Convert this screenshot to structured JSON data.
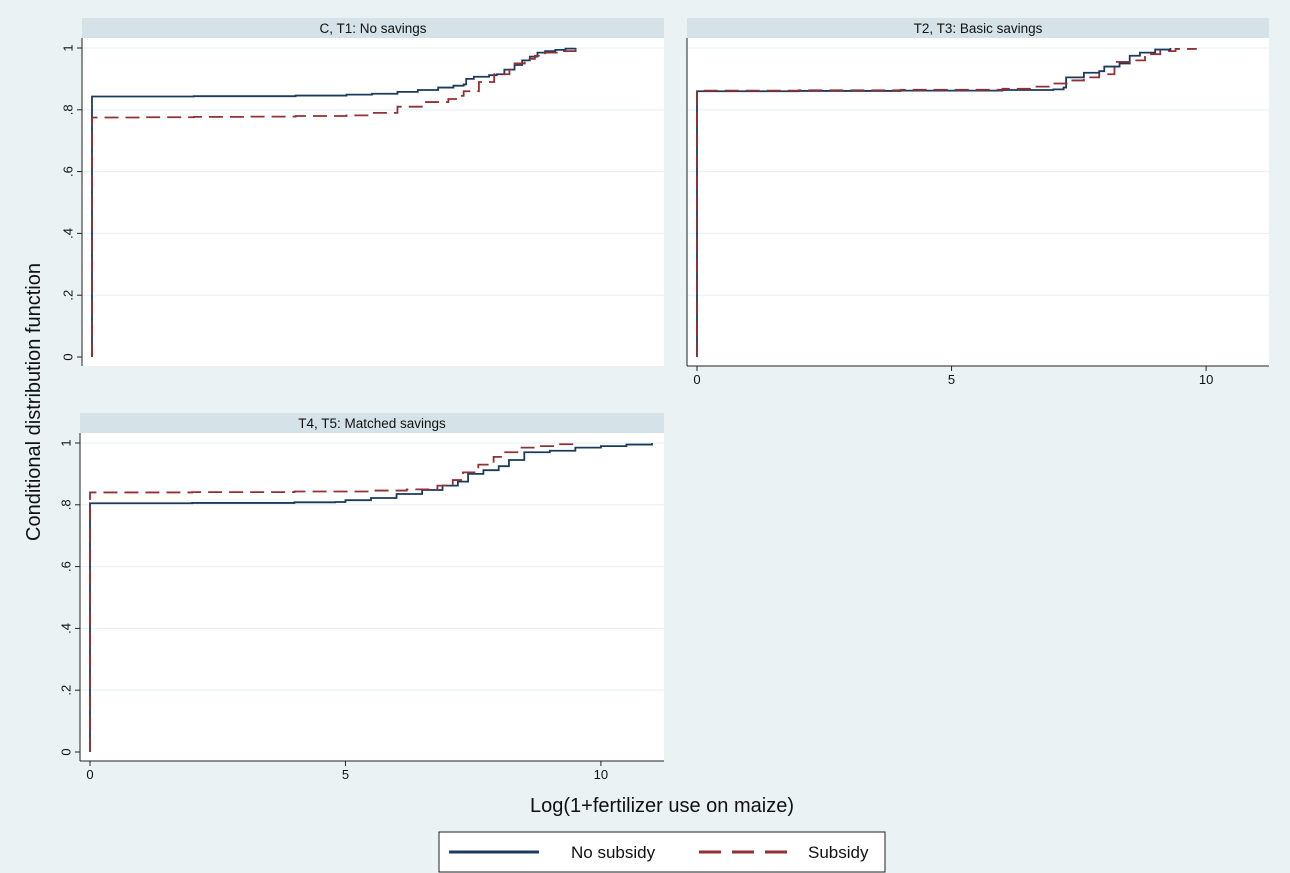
{
  "colors": {
    "background": "#eaf2f3",
    "panel_header": "#d5e2e8",
    "plot_bg": "#ffffff",
    "grid": "#eaf2f3",
    "no_subsidy": "#1b3a5c",
    "subsidy": "#923034"
  },
  "figure": {
    "ylabel": "Conditional distribution function",
    "xlabel": "Log(1+fertilizer use on maize)"
  },
  "legend": {
    "placement": "bottom-center",
    "items": [
      {
        "label": "No subsidy",
        "color": "#1b3a5c",
        "dash": "solid"
      },
      {
        "label": "Subsidy",
        "color": "#923034",
        "dash": "dashed"
      }
    ]
  },
  "chart_data": [
    {
      "type": "line",
      "title": "C, T1: No savings",
      "xlim": [
        0,
        11
      ],
      "ylim": [
        0,
        1
      ],
      "yticks": [
        0,
        0.2,
        0.4,
        0.6,
        0.8,
        1
      ],
      "ytick_labels": [
        "0",
        ".2",
        ".4",
        ".6",
        ".8",
        "1"
      ],
      "xticks": [],
      "xtick_labels": [],
      "grid": true,
      "series": [
        {
          "name": "No subsidy",
          "x": [
            0,
            0,
            2,
            4,
            5,
            5.5,
            6,
            6.4,
            6.8,
            7.1,
            7.3,
            7.35,
            7.5,
            7.8,
            7.95,
            8.1,
            8.3,
            8.45,
            8.6,
            8.75,
            8.9,
            9.1,
            9.3,
            9.5
          ],
          "y": [
            0,
            0.843,
            0.844,
            0.846,
            0.849,
            0.852,
            0.858,
            0.864,
            0.872,
            0.878,
            0.882,
            0.9,
            0.907,
            0.912,
            0.915,
            0.93,
            0.945,
            0.96,
            0.972,
            0.985,
            0.99,
            0.994,
            0.998,
            1.0
          ]
        },
        {
          "name": "Subsidy",
          "x": [
            0,
            0,
            1,
            2,
            3,
            4,
            5,
            5.5,
            6,
            6.5,
            7,
            7.2,
            7.3,
            7.6,
            7.9,
            8.2,
            8.3,
            8.5,
            8.7,
            8.9,
            9.2,
            9.5
          ],
          "y": [
            0,
            0.775,
            0.776,
            0.777,
            0.778,
            0.78,
            0.782,
            0.79,
            0.81,
            0.825,
            0.835,
            0.845,
            0.86,
            0.89,
            0.915,
            0.93,
            0.95,
            0.965,
            0.975,
            0.985,
            0.99,
            0.995
          ]
        }
      ]
    },
    {
      "type": "line",
      "title": "T2, T3: Basic savings",
      "xlim": [
        0,
        11
      ],
      "ylim": [
        0,
        1
      ],
      "yticks": [
        0,
        0.2,
        0.4,
        0.6,
        0.8,
        1
      ],
      "ytick_labels": [],
      "xticks": [
        0,
        5,
        10
      ],
      "xtick_labels": [
        "0",
        "5",
        "10"
      ],
      "grid": true,
      "series": [
        {
          "name": "No subsidy",
          "x": [
            0,
            0,
            2,
            4,
            6,
            7.0,
            7.2,
            7.25,
            7.6,
            7.9,
            8.0,
            8.3,
            8.5,
            8.7,
            9.0,
            9.3
          ],
          "y": [
            0,
            0.86,
            0.861,
            0.862,
            0.864,
            0.866,
            0.872,
            0.905,
            0.92,
            0.925,
            0.94,
            0.95,
            0.975,
            0.985,
            0.995,
            1.0
          ]
        },
        {
          "name": "Subsidy",
          "x": [
            0,
            0,
            2,
            4,
            6,
            6.6,
            7.0,
            7.3,
            7.6,
            7.9,
            8.2,
            8.5,
            8.8,
            9.1,
            9.4,
            9.8
          ],
          "y": [
            0,
            0.862,
            0.863,
            0.865,
            0.868,
            0.875,
            0.885,
            0.895,
            0.905,
            0.915,
            0.955,
            0.96,
            0.98,
            0.99,
            0.997,
            1.0
          ]
        }
      ]
    },
    {
      "type": "line",
      "title": "T4, T5: Matched savings",
      "xlim": [
        0,
        11
      ],
      "ylim": [
        0,
        1
      ],
      "yticks": [
        0,
        0.2,
        0.4,
        0.6,
        0.8,
        1
      ],
      "ytick_labels": [
        "0",
        ".2",
        ".4",
        ".6",
        ".8",
        "1"
      ],
      "xticks": [
        0,
        5,
        10
      ],
      "xtick_labels": [
        "0",
        "5",
        "10"
      ],
      "grid": true,
      "series": [
        {
          "name": "No subsidy",
          "x": [
            0,
            0,
            2,
            4,
            4.8,
            5.0,
            5.5,
            6.0,
            6.5,
            6.9,
            7.2,
            7.4,
            7.7,
            8.0,
            8.2,
            8.5,
            9.0,
            9.5,
            10.0,
            10.5,
            11.0
          ],
          "y": [
            0,
            0.805,
            0.806,
            0.808,
            0.809,
            0.815,
            0.822,
            0.835,
            0.848,
            0.862,
            0.875,
            0.9,
            0.912,
            0.925,
            0.945,
            0.97,
            0.975,
            0.985,
            0.99,
            0.995,
            1.0
          ]
        },
        {
          "name": "Subsidy",
          "x": [
            0,
            0,
            2,
            4,
            5.5,
            6.2,
            6.8,
            7.1,
            7.3,
            7.6,
            7.9,
            8.1,
            8.4,
            8.8,
            9.2,
            9.5
          ],
          "y": [
            0,
            0.84,
            0.841,
            0.843,
            0.846,
            0.85,
            0.862,
            0.88,
            0.905,
            0.93,
            0.955,
            0.97,
            0.985,
            0.99,
            0.996,
            1.0
          ]
        }
      ]
    }
  ]
}
